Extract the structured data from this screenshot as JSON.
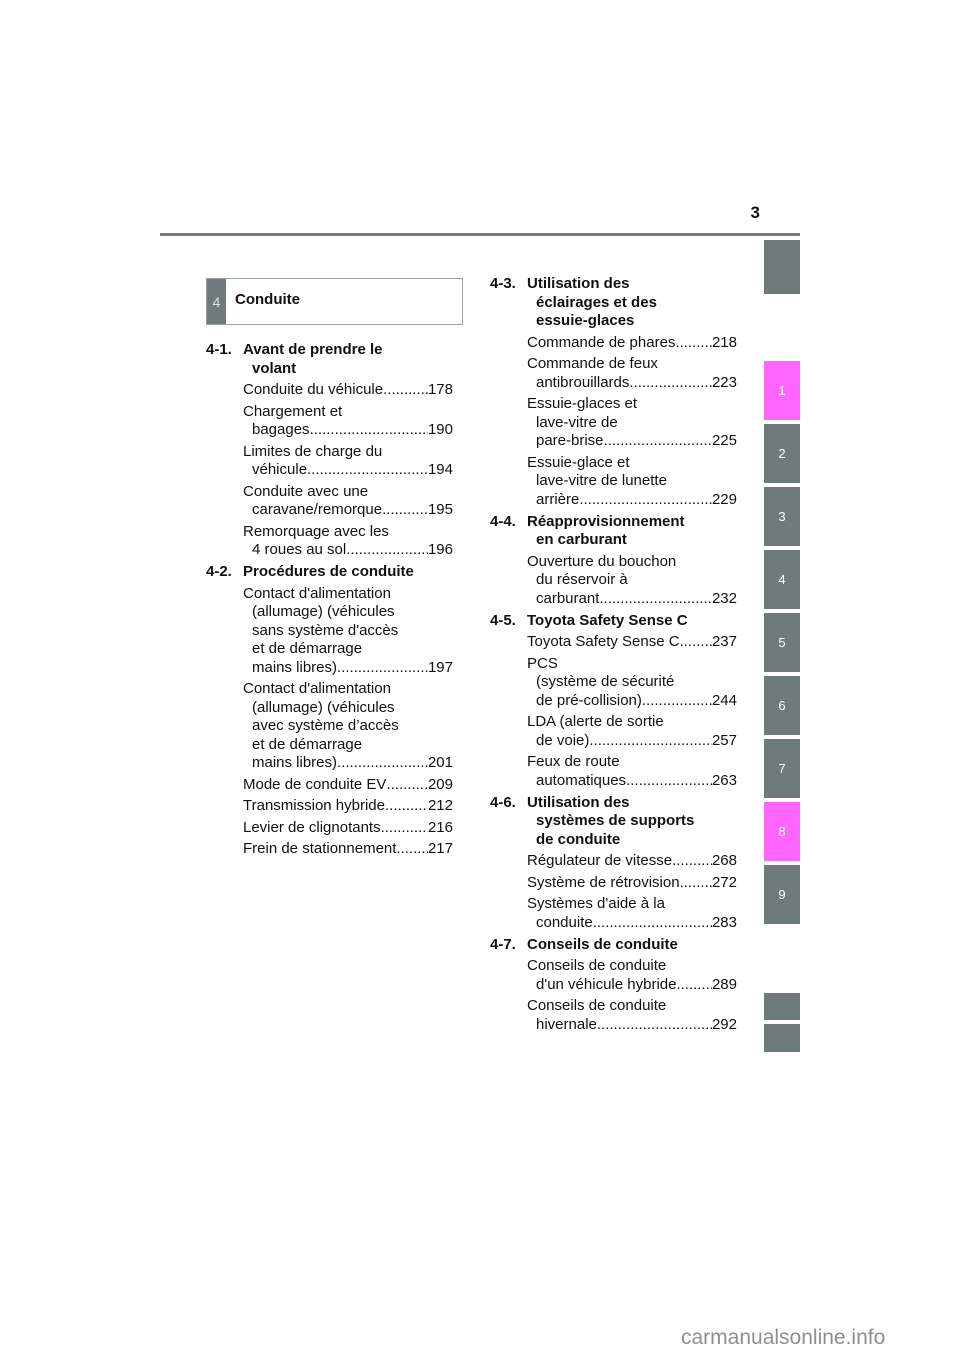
{
  "page_number": "3",
  "chapter": {
    "number": "4",
    "title": "Conduite"
  },
  "side_tabs": [
    "1",
    "2",
    "3",
    "4",
    "5",
    "6",
    "7",
    "8",
    "9"
  ],
  "colors": {
    "tab_gray": "#6e7b7a",
    "tab_pink": "#ff66ff"
  },
  "left_column": [
    {
      "num": "4-1.",
      "title": [
        "Avant de prendre le",
        "volant"
      ],
      "entries": [
        {
          "lines": [
            "Conduite du véhicule"
          ],
          "page": "178"
        },
        {
          "lines": [
            "Chargement et",
            "bagages"
          ],
          "page": "190"
        },
        {
          "lines": [
            "Limites de charge du",
            "véhicule"
          ],
          "page": "194"
        },
        {
          "lines": [
            "Conduite avec une",
            "caravane/remorque"
          ],
          "page": "195"
        },
        {
          "lines": [
            "Remorquage avec les",
            "4 roues au sol"
          ],
          "page": "196"
        }
      ]
    },
    {
      "num": "4-2.",
      "title": [
        "Procédures de conduite"
      ],
      "entries": [
        {
          "lines": [
            "Contact d'alimentation",
            "(allumage) (véhicules",
            "sans système d'accès",
            "et de démarrage",
            "mains libres)"
          ],
          "page": "197"
        },
        {
          "lines": [
            "Contact d'alimentation",
            "(allumage) (véhicules",
            "avec système d’accès",
            "et de démarrage",
            "mains libres)"
          ],
          "page": "201"
        },
        {
          "lines": [
            "Mode de conduite EV"
          ],
          "page": "209"
        },
        {
          "lines": [
            "Transmission hybride"
          ],
          "page": "212"
        },
        {
          "lines": [
            "Levier de clignotants"
          ],
          "page": "216"
        },
        {
          "lines": [
            "Frein de stationnement"
          ],
          "page": "217"
        }
      ]
    }
  ],
  "right_column": [
    {
      "num": "4-3.",
      "title": [
        "Utilisation des",
        "éclairages et des",
        "essuie-glaces"
      ],
      "entries": [
        {
          "lines": [
            "Commande de phares"
          ],
          "page": "218"
        },
        {
          "lines": [
            "Commande de feux",
            "antibrouillards"
          ],
          "page": "223"
        },
        {
          "lines": [
            "Essuie-glaces et",
            "lave-vitre de",
            "pare-brise"
          ],
          "page": "225"
        },
        {
          "lines": [
            "Essuie-glace et",
            "lave-vitre de lunette",
            "arrière"
          ],
          "page": "229"
        }
      ]
    },
    {
      "num": "4-4.",
      "title": [
        "Réapprovisionnement",
        "en carburant"
      ],
      "entries": [
        {
          "lines": [
            "Ouverture du bouchon",
            "du réservoir à",
            "carburant"
          ],
          "page": "232"
        }
      ]
    },
    {
      "num": "4-5.",
      "title": [
        "Toyota Safety Sense C"
      ],
      "entries": [
        {
          "lines": [
            "Toyota Safety Sense C"
          ],
          "page": "237"
        },
        {
          "lines": [
            "PCS",
            "(système de sécurité",
            "de pré-collision)"
          ],
          "page": "244"
        },
        {
          "lines": [
            "LDA (alerte de sortie",
            "de voie)"
          ],
          "page": "257"
        },
        {
          "lines": [
            "Feux de route",
            "automatiques"
          ],
          "page": "263"
        }
      ]
    },
    {
      "num": "4-6.",
      "title": [
        "Utilisation des",
        "systèmes de supports",
        "de conduite"
      ],
      "entries": [
        {
          "lines": [
            "Régulateur de vitesse"
          ],
          "page": "268"
        },
        {
          "lines": [
            "Système de rétrovision"
          ],
          "page": "272"
        },
        {
          "lines": [
            "Systèmes d'aide à la",
            "conduite"
          ],
          "page": "283"
        }
      ]
    },
    {
      "num": "4-7.",
      "title": [
        "Conseils de conduite"
      ],
      "entries": [
        {
          "lines": [
            "Conseils de conduite",
            "d'un véhicule hybride"
          ],
          "page": "289"
        },
        {
          "lines": [
            "Conseils de conduite",
            "hivernale"
          ],
          "page": "292"
        }
      ]
    }
  ],
  "watermark": "carmanualsonline.info"
}
